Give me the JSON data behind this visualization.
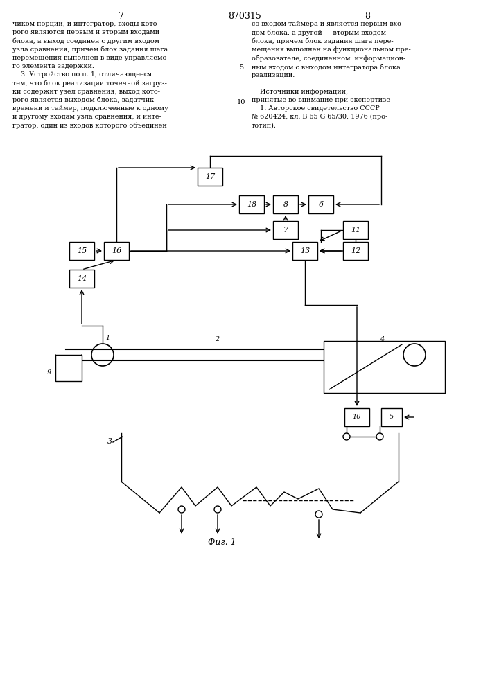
{
  "title": "870315",
  "page_left": "7",
  "page_right": "8",
  "fig_label": "Фиг. 1",
  "background_color": "#ffffff"
}
